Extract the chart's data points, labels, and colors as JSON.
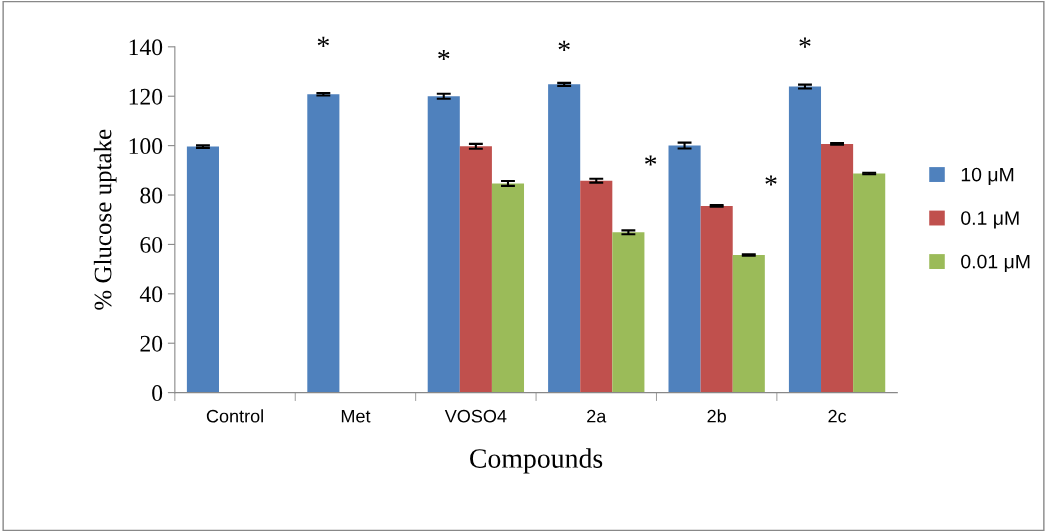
{
  "chart_data": {
    "type": "bar",
    "xlabel": "Compounds",
    "ylabel": "% Glucose uptake",
    "categories": [
      "Control",
      "Met",
      "VOSO4",
      "2a",
      "2b",
      "2c"
    ],
    "series": [
      {
        "name": "10 μM",
        "color": "#4f81bd",
        "values": [
          99.6,
          120.8,
          120,
          124.8,
          100,
          123.9
        ],
        "errors": [
          0.5,
          0.5,
          1,
          0.6,
          1.2,
          0.8
        ]
      },
      {
        "name": "0.1 μM",
        "color": "#c0504d",
        "values": [
          null,
          null,
          99.7,
          85.8,
          75.6,
          100.7
        ],
        "errors": [
          null,
          null,
          1,
          0.8,
          0.3,
          0.3
        ]
      },
      {
        "name": "0.01 μM",
        "color": "#9bbb59",
        "values": [
          null,
          null,
          84.7,
          64.9,
          55.7,
          88.7
        ],
        "errors": [
          null,
          null,
          1,
          0.8,
          0.3,
          0.3
        ]
      }
    ],
    "ylim": [
      0,
      140
    ],
    "yticks": [
      0,
      20,
      40,
      60,
      80,
      100,
      120,
      140
    ],
    "grid": false,
    "legend": "right",
    "annotations": [
      "*",
      "*",
      "*",
      "*",
      "*",
      "*"
    ]
  }
}
